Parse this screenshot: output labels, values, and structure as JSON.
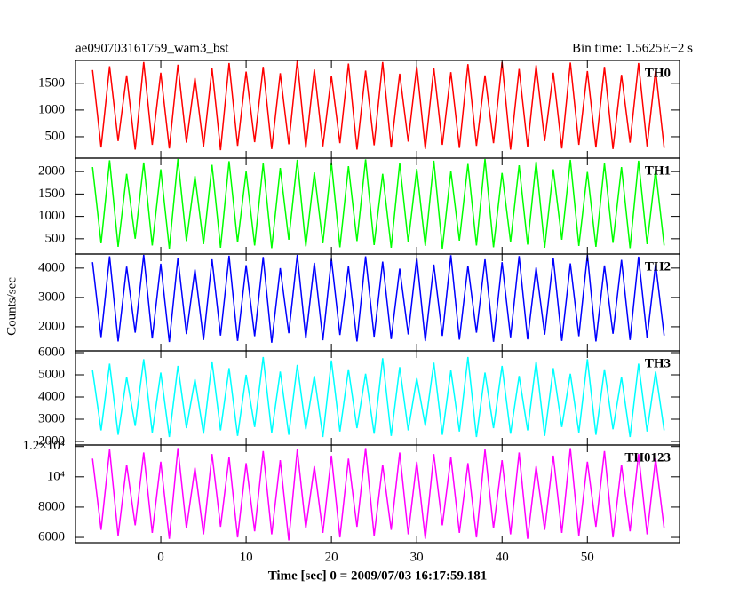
{
  "chart_data": {
    "type": "line",
    "title": "ae090703161759_wam3_bst",
    "subtitle": "Bin time: 1.5625E−2 s",
    "y_label": "Counts/sec",
    "x_label": "Time [sec] 0 = 2009/07/03 16:17:59.181",
    "xlim": [
      -10,
      60.8
    ],
    "xticks": [
      0,
      10,
      20,
      30,
      40,
      50
    ],
    "x": [
      -8,
      -7,
      -6,
      -5,
      -4,
      -3,
      -2,
      -1,
      0,
      1,
      2,
      3,
      4,
      5,
      6,
      7,
      8,
      9,
      10,
      11,
      12,
      13,
      14,
      15,
      16,
      17,
      18,
      19,
      20,
      21,
      22,
      23,
      24,
      25,
      26,
      27,
      28,
      29,
      30,
      31,
      32,
      33,
      34,
      35,
      36,
      37,
      38,
      39,
      40,
      41,
      42,
      43,
      44,
      45,
      46,
      47,
      48,
      49,
      50,
      51,
      52,
      53,
      54,
      55,
      56,
      57,
      58,
      59
    ],
    "series": [
      {
        "name": "TH0",
        "color": "#ff0000",
        "ylim": [
          100,
          1930
        ],
        "yticks": [
          500,
          1000,
          1500
        ],
        "values": [
          1750,
          300,
          1820,
          420,
          1650,
          260,
          1900,
          350,
          1700,
          280,
          1850,
          390,
          1600,
          310,
          1780,
          250,
          1880,
          330,
          1720,
          400,
          1810,
          270,
          1690,
          360,
          1930,
          290,
          1760,
          320,
          1640,
          380,
          1870,
          260,
          1740,
          340,
          1900,
          300,
          1680,
          410,
          1820,
          270,
          1790,
          350,
          1710,
          290,
          1860,
          330,
          1650,
          380,
          1900,
          260,
          1770,
          310,
          1840,
          420,
          1700,
          280,
          1890,
          350,
          1730,
          300,
          1810,
          270,
          1660,
          390,
          1880,
          320,
          1750,
          290
        ]
      },
      {
        "name": "TH1",
        "color": "#00ff00",
        "ylim": [
          160,
          2300
        ],
        "yticks": [
          500,
          1000,
          1500,
          2000
        ],
        "values": [
          2100,
          400,
          2250,
          320,
          1950,
          500,
          2200,
          350,
          2050,
          280,
          2280,
          450,
          1900,
          380,
          2150,
          300,
          2230,
          420,
          2000,
          350,
          2180,
          290,
          2080,
          480,
          2260,
          330,
          1980,
          400,
          2200,
          310,
          2120,
          450,
          2270,
          360,
          1950,
          300,
          2190,
          420,
          2060,
          340,
          2240,
          280,
          2010,
          460,
          2170,
          350,
          2280,
          310,
          1970,
          430,
          2140,
          370,
          2220,
          300,
          2050,
          480,
          2260,
          340,
          1990,
          320,
          2180,
          410,
          2100,
          290,
          2240,
          380,
          2030,
          350
        ]
      },
      {
        "name": "TH2",
        "color": "#0000ff",
        "ylim": [
          1180,
          4480
        ],
        "yticks": [
          2000,
          3000,
          4000
        ],
        "values": [
          4200,
          1650,
          4400,
          1500,
          4050,
          1800,
          4450,
          1600,
          4150,
          1480,
          4350,
          1750,
          3950,
          1550,
          4300,
          1700,
          4420,
          1520,
          4100,
          1680,
          4380,
          1460,
          4000,
          1780,
          4450,
          1600,
          4180,
          1540,
          4320,
          1720,
          4060,
          1500,
          4400,
          1660,
          4220,
          1580,
          3980,
          1740,
          4360,
          1510,
          4120,
          1690,
          4440,
          1560,
          4080,
          1800,
          4300,
          1490,
          4200,
          1640,
          4410,
          1570,
          4020,
          1730,
          4340,
          1520,
          4160,
          1680,
          4450,
          1500,
          4090,
          1760,
          4280,
          1550,
          4390,
          1620,
          4140,
          1700
        ]
      },
      {
        "name": "TH3",
        "color": "#00ffff",
        "ylim": [
          1840,
          6080
        ],
        "yticks": [
          2000,
          3000,
          4000,
          5000,
          6000
        ],
        "values": [
          5200,
          2500,
          5500,
          2300,
          4900,
          2700,
          5700,
          2400,
          5100,
          2200,
          5400,
          2600,
          4800,
          2350,
          5600,
          2500,
          5300,
          2250,
          5000,
          2650,
          5800,
          2400,
          5150,
          2300,
          5450,
          2550,
          4950,
          2200,
          5650,
          2450,
          5250,
          2600,
          5050,
          2350,
          5750,
          2250,
          5350,
          2500,
          4850,
          2700,
          5550,
          2300,
          5200,
          2450,
          5800,
          2200,
          5100,
          2600,
          5400,
          2350,
          4950,
          2500,
          5600,
          2250,
          5300,
          2650,
          5050,
          2400,
          5700,
          2300,
          5250,
          2550,
          4900,
          2200,
          5500,
          2450,
          5150,
          2500
        ]
      },
      {
        "name": "TH0123",
        "color": "#ff00ff",
        "ylim": [
          5650,
          12100
        ],
        "yticks": [
          6000,
          8000,
          {
            "value": 10000,
            "label": "10⁴"
          },
          {
            "value": 12000,
            "label": "1.2×10⁴"
          }
        ],
        "values": [
          11200,
          6500,
          11800,
          6100,
          10800,
          6800,
          11600,
          6300,
          11000,
          5900,
          11900,
          6600,
          10600,
          6200,
          11500,
          6700,
          11300,
          6000,
          10900,
          6400,
          11700,
          6200,
          11100,
          5800,
          11800,
          6600,
          10700,
          6300,
          11400,
          6000,
          11200,
          6700,
          11900,
          6100,
          10800,
          6500,
          11600,
          6200,
          11000,
          5900,
          11500,
          6800,
          11300,
          6300,
          10900,
          6000,
          11800,
          6600,
          11100,
          6200,
          11600,
          5900,
          10700,
          6500,
          11400,
          6300,
          11900,
          6100,
          11000,
          6700,
          11700,
          6000,
          10800,
          6400,
          11500,
          6200,
          11200,
          6600
        ]
      }
    ]
  }
}
